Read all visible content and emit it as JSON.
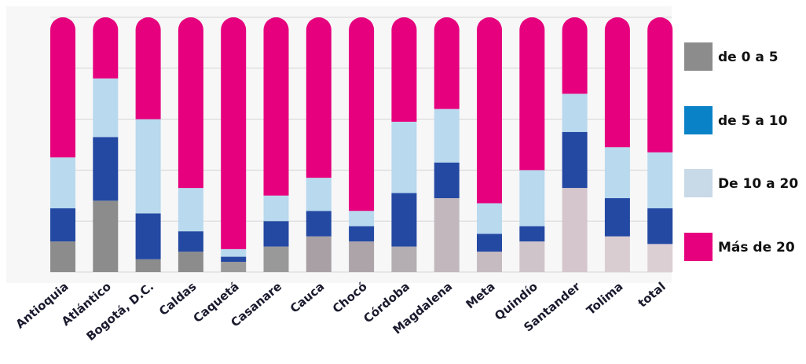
{
  "chart_data": {
    "type": "bar",
    "stacked": true,
    "percent": true,
    "categories": [
      "Antioquia",
      "Atlántico",
      "Bogotá, D.C.",
      "Caldas",
      "Caquetá",
      "Casanare",
      "Cauca",
      "Chocó",
      "Córdoba",
      "Magdalena",
      "Meta",
      "Quindío",
      "Santander",
      "Tolima",
      "total"
    ],
    "series": [
      {
        "name": "de 0 a 5",
        "values": [
          12,
          28,
          5,
          8,
          4,
          10,
          14,
          12,
          10,
          29,
          8,
          12,
          33,
          14,
          11
        ]
      },
      {
        "name": "de 5 a 10",
        "values": [
          13,
          25,
          18,
          8,
          2,
          10,
          10,
          6,
          21,
          14,
          7,
          6,
          22,
          15,
          14
        ]
      },
      {
        "name": "De 10 a 20",
        "values": [
          20,
          23,
          37,
          17,
          3,
          10,
          13,
          6,
          28,
          21,
          12,
          22,
          15,
          20,
          22
        ]
      },
      {
        "name": "Más de 20",
        "values": [
          55,
          24,
          40,
          67,
          91,
          70,
          63,
          76,
          41,
          36,
          73,
          60,
          30,
          51,
          53
        ]
      }
    ],
    "ylim": [
      0,
      100
    ],
    "grid": true,
    "legend": "right",
    "title": "",
    "xlabel": "",
    "ylabel": "",
    "colors": {
      "de 0 a 5": "#8c8c8c",
      "de 5 a 10": "#2449a3",
      "De 10 a 20": "#b8d9ee",
      "Más de 20": "#e6007e"
    },
    "legend_swatch_colors": [
      "#8c8c8c",
      "#0a82c8",
      "#c8d9e8",
      "#e6007e"
    ],
    "low_band_colors": [
      "#8c8c8c",
      "#8c8c8c",
      "#8c8c8c",
      "#8c8c8c",
      "#9a9a9a",
      "#999999",
      "#a8a0a4",
      "#aca4a8",
      "#b4aeb2",
      "#c1b7bc",
      "#c6bbc0",
      "#cfc4c9",
      "#d4c6cc",
      "#d9cdd2",
      "#dccfd4"
    ]
  }
}
